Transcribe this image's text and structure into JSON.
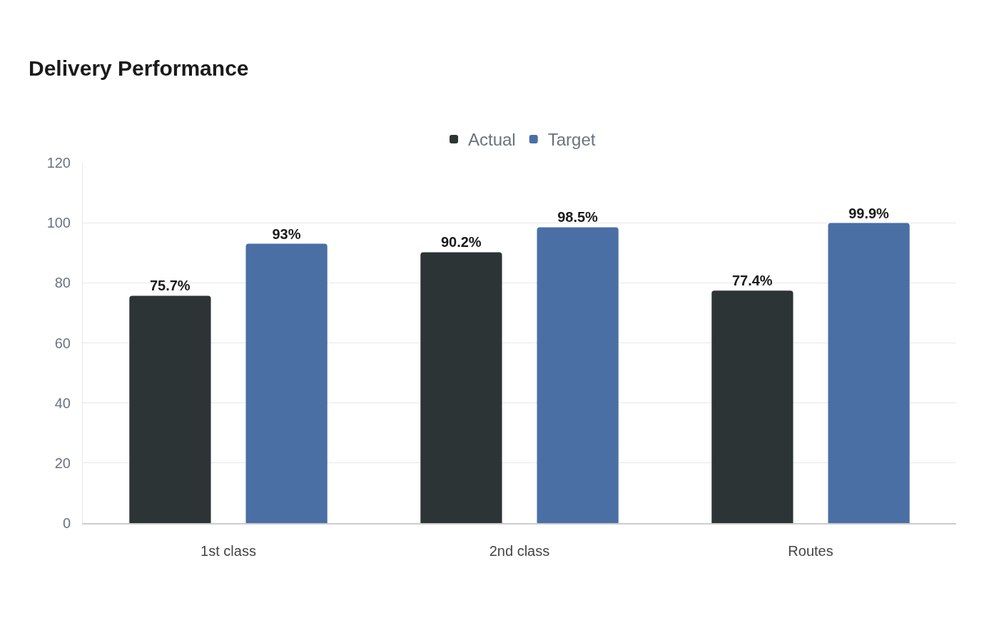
{
  "chart_data": {
    "type": "bar",
    "title": "Delivery Performance",
    "categories": [
      "1st class",
      "2nd class",
      "Routes"
    ],
    "series": [
      {
        "name": "Actual",
        "color": "#2d3436",
        "values": [
          75.7,
          90.2,
          77.4
        ],
        "value_labels": [
          "75.7%",
          "90.2%",
          "77.4%"
        ]
      },
      {
        "name": "Target",
        "color": "#4a6fa5",
        "values": [
          93,
          98.5,
          99.9
        ],
        "value_labels": [
          "93%",
          "98.5%",
          "99.9%"
        ]
      }
    ],
    "ylim": [
      0,
      120
    ],
    "yticks": [
      0,
      20,
      40,
      60,
      80,
      100,
      120
    ],
    "grid": "y",
    "legend": "top"
  }
}
